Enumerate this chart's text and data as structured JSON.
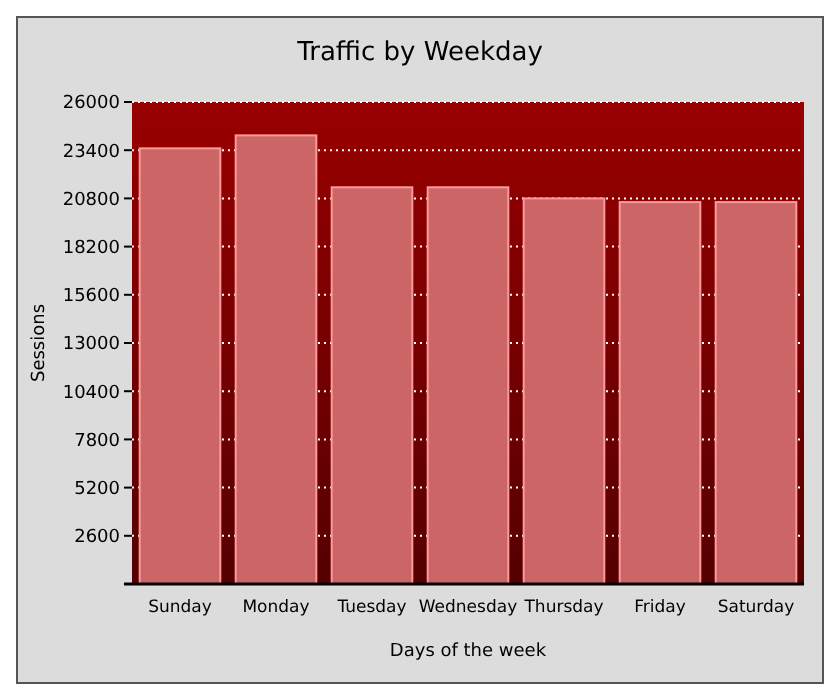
{
  "chart_data": {
    "type": "bar",
    "title": "Traffic by Weekday",
    "xlabel": "Days of the week",
    "ylabel": "Sessions",
    "categories": [
      "Sunday",
      "Monday",
      "Tuesday",
      "Wednesday",
      "Thursday",
      "Friday",
      "Saturday"
    ],
    "values": [
      23500,
      24200,
      21400,
      21400,
      20800,
      20600,
      20600
    ],
    "color": "#cc6666",
    "ylim": [
      0,
      26000
    ],
    "yticks": [
      {
        "value": 0,
        "label": null
      },
      2600,
      5200,
      7800,
      10400,
      13000,
      15600,
      18200,
      20800,
      23400,
      26000
    ],
    "grid": "y"
  }
}
